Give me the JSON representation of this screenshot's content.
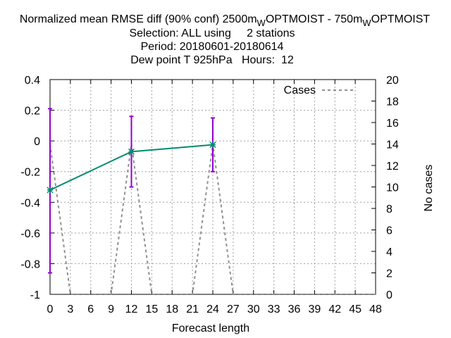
{
  "chart_data": {
    "type": "line",
    "title_lines": [
      "Normalized mean RMSE diff (90% conf) 2500m",
      "W",
      "OPTMOIST - 750m",
      "W",
      "OPTMOIST"
    ],
    "subtitle_lines": [
      "Selection: ALL using     2 stations",
      "Period: 20180601-20180614",
      "Dew point T 925hPa   Hours:  12"
    ],
    "xlabel": "Forecast length",
    "ylabel": "",
    "y2label": "No cases",
    "xlim": [
      0,
      48
    ],
    "ylim": [
      -1,
      0.4
    ],
    "y2lim": [
      0,
      20
    ],
    "x_ticks": [
      "0",
      "3",
      "6",
      "9",
      "12",
      "15",
      "18",
      "21",
      "24",
      "27",
      "30",
      "33",
      "36",
      "39",
      "42",
      "45",
      "48"
    ],
    "y_ticks": [
      "0.4",
      "0.2",
      "0",
      "-0.2",
      "-0.4",
      "-0.6",
      "-0.8",
      "-1"
    ],
    "y2_ticks": [
      "20",
      "18",
      "16",
      "14",
      "12",
      "10",
      "8",
      "6",
      "4",
      "2",
      "0"
    ],
    "grid": true,
    "legend_position": "top-right",
    "series": [
      {
        "name": "",
        "color": "#008b6b",
        "x": [
          0,
          12,
          24
        ],
        "values": [
          -0.32,
          -0.07,
          -0.025
        ],
        "error_low": [
          -0.86,
          -0.3,
          -0.2
        ],
        "error_high": [
          0.21,
          0.16,
          0.15
        ],
        "error_color": "#9400d3"
      },
      {
        "name": "Cases",
        "axis": "y2",
        "style": "dashed",
        "color": "#909090",
        "x": [
          0,
          3,
          9,
          12,
          15,
          21,
          24,
          27,
          48
        ],
        "values": [
          14,
          0,
          0,
          14,
          0,
          0,
          14,
          0,
          0
        ]
      }
    ]
  }
}
